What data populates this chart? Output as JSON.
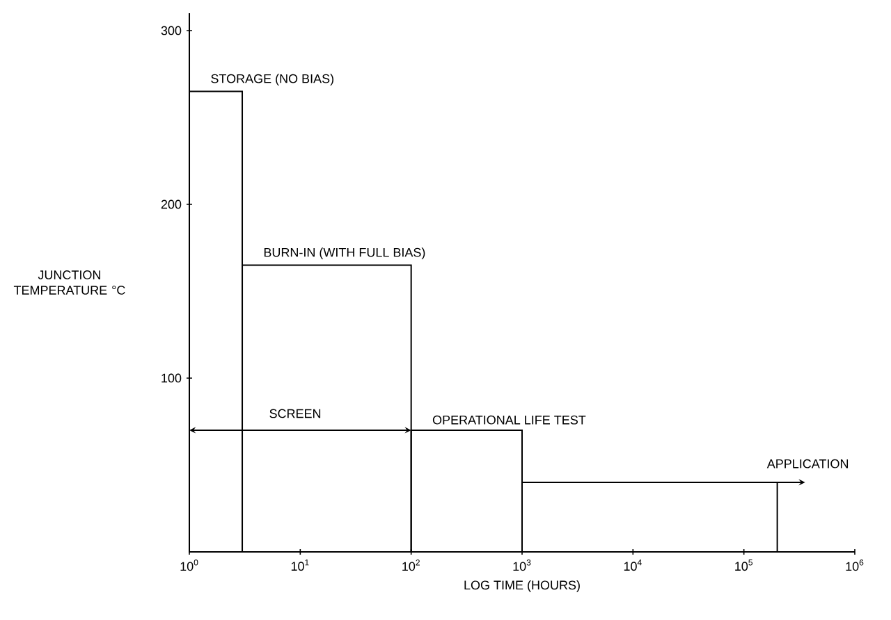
{
  "chart_data": {
    "type": "histogram",
    "xlabel": "LOG TIME (HOURS)",
    "ylabel": "JUNCTION TEMPERATURE °C",
    "bins": [
      1,
      3,
      100,
      1000,
      200000
    ],
    "values": [
      265,
      165,
      70,
      40
    ],
    "color": "#000000",
    "log": "x",
    "xlim": [
      1,
      1000000
    ],
    "ylim": [
      0,
      310
    ],
    "xticks": [
      {
        "value": 1,
        "label": "10$^{0}$"
      },
      {
        "value": 10,
        "label": "10$^{1}$"
      },
      {
        "value": 100,
        "label": "10$^{2}$"
      },
      {
        "value": 1000,
        "label": "10$^{3}$"
      },
      {
        "value": 10000,
        "label": "10$^{4}$"
      },
      {
        "value": 100000,
        "label": "10$^{5}$"
      },
      {
        "value": 1000000,
        "label": "10$^{6}$"
      }
    ],
    "yticks": [
      100,
      200,
      300
    ],
    "annotations": [
      "STORAGE (NO BIAS)",
      "BURN-IN (WITH FULL BIAS)",
      "OPERATIONAL LIFE TEST",
      "APPLICATION",
      "SCREEN"
    ]
  }
}
